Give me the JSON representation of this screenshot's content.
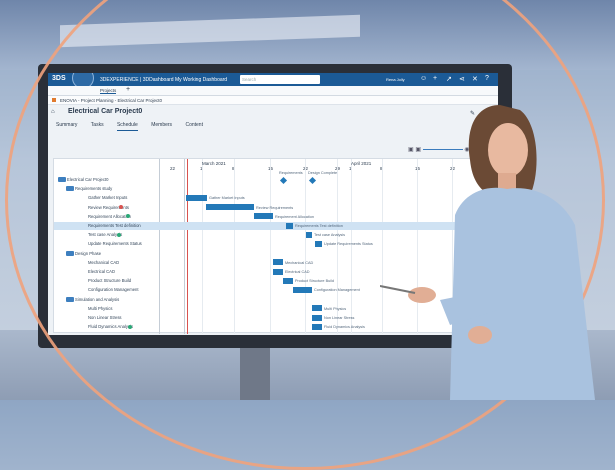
{
  "app": {
    "brand": "3DS",
    "title": "3DEXPERIENCE | 3DDashboard  My Working Dashboard",
    "search_placeholder": "Search",
    "user": "Rena Jolly",
    "tab": "Projects"
  },
  "breadcrumb": "ENOVIA - Project Planning - Electrical Car Project0",
  "project_title": "Electrical Car Project0",
  "subtabs": [
    {
      "label": "Summary"
    },
    {
      "label": "Tasks"
    },
    {
      "label": "Schedule",
      "active": true
    },
    {
      "label": "Members"
    },
    {
      "label": "Content"
    }
  ],
  "timeline": {
    "month1": "March 2021",
    "month2": "April 2021",
    "days": [
      "22",
      "1",
      "8",
      "15",
      "22",
      "29",
      "1",
      "8",
      "15",
      "22",
      "29"
    ]
  },
  "milestones": [
    "Requirements",
    "Design Complete"
  ],
  "tasks": [
    {
      "name": "Electrical Car Project0",
      "level": 0
    },
    {
      "name": "Requirements study",
      "level": 1
    },
    {
      "name": "Gather Market Inputs",
      "level": 2,
      "bar": "Gather Market Inputs"
    },
    {
      "name": "Review Requirements",
      "level": 2,
      "bar": "Review Requirements",
      "badge": "red",
      "count": "1"
    },
    {
      "name": "Requirement Allocation",
      "level": 2,
      "bar": "Requirement Allocation",
      "badge": "green"
    },
    {
      "name": "Requirements Test definition",
      "level": 2,
      "bar": "Requirements Test definition",
      "selected": true
    },
    {
      "name": "Test case Analysis",
      "level": 2,
      "bar": "Test case Analysis",
      "badge": "green"
    },
    {
      "name": "Update Requirements Status",
      "level": 2,
      "bar": "Update Requirements Status"
    },
    {
      "name": "Design Phase",
      "level": 1
    },
    {
      "name": "Mechanical CAD",
      "level": 2,
      "bar": "Mechanical CAD"
    },
    {
      "name": "Electrical CAD",
      "level": 2,
      "bar": "Electrical CAD"
    },
    {
      "name": "Product Structure Build",
      "level": 2,
      "bar": "Product Structure Build"
    },
    {
      "name": "Configuration Management",
      "level": 2,
      "bar": "Configuration Management"
    },
    {
      "name": "Simulation and Analysis",
      "level": 1
    },
    {
      "name": "Multi Physics",
      "level": 2,
      "bar": "Multi Physics"
    },
    {
      "name": "Non Linear Stress",
      "level": 2,
      "bar": "Non Linear Stress"
    },
    {
      "name": "Fluid Dynamics Analysis",
      "level": 2,
      "bar": "Fluid Dynamics Analysis",
      "badge": "green"
    }
  ],
  "colors": {
    "accent": "#1b5a96",
    "bar": "#2379b8",
    "ring": "#f0a27c",
    "today": "#d9534f"
  }
}
